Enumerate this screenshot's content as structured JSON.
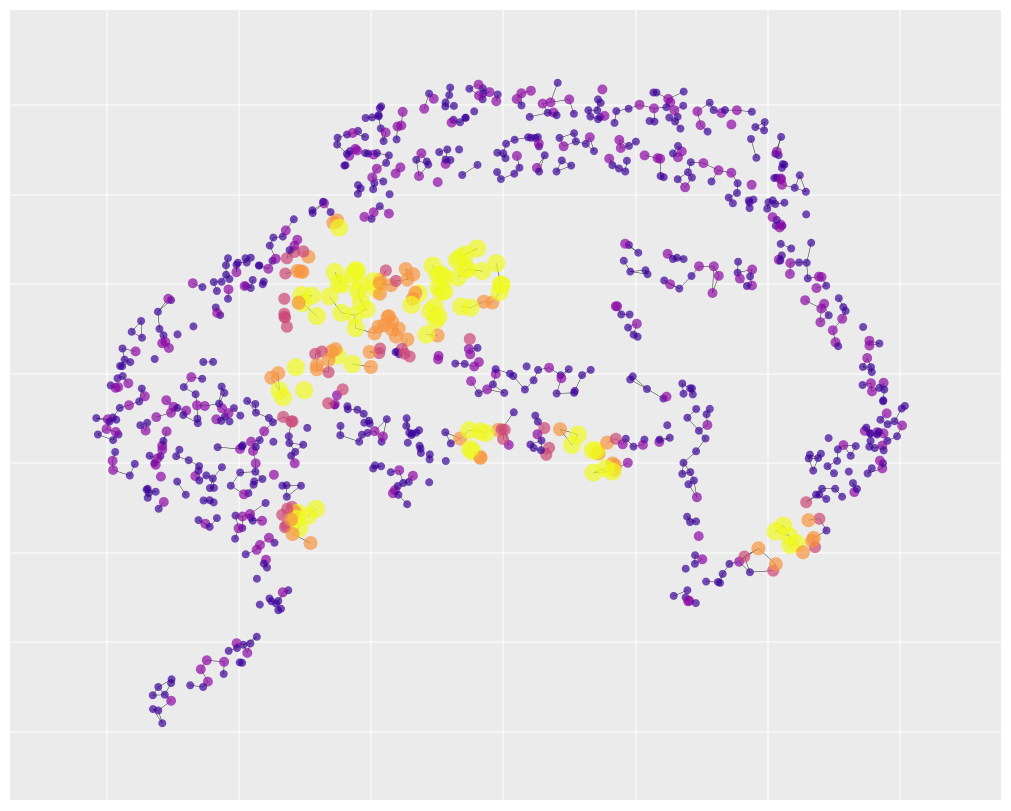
{
  "figure": {
    "type": "network-graph",
    "style": "ggplot",
    "grid": true,
    "tick_labels_visible": false,
    "background_color": "#ebebeb",
    "grid_color": "#ffffff",
    "edge_color": "#222222",
    "node_colormap": "plasma",
    "colors": {
      "low": "#3d049b",
      "mid_low": "#8b0aa5",
      "mid": "#cc4778",
      "mid_high": "#f89540",
      "high": "#f0f921"
    }
  }
}
